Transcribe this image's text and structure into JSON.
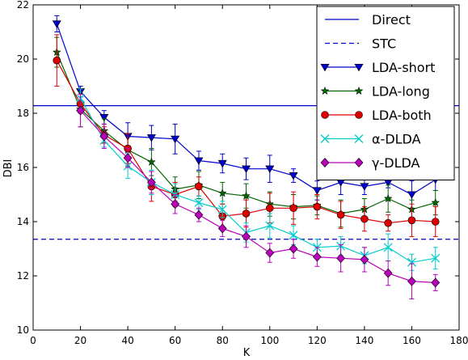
{
  "chart_data": {
    "type": "line",
    "xlabel": "K",
    "ylabel": "DBI",
    "xlim": [
      0,
      180
    ],
    "ylim": [
      10,
      22
    ],
    "xticks": [
      0,
      20,
      40,
      60,
      80,
      100,
      120,
      140,
      160,
      180
    ],
    "yticks": [
      10,
      12,
      14,
      16,
      18,
      20,
      22
    ],
    "grid": false,
    "legend_position": "top-right",
    "reference_lines": [
      {
        "name": "Direct",
        "y": 18.28,
        "style": "solid",
        "color": "#0000cc"
      },
      {
        "name": "STC",
        "y": 13.35,
        "style": "dashed",
        "color": "#0000cc"
      }
    ],
    "x": [
      10,
      20,
      30,
      40,
      50,
      60,
      70,
      80,
      90,
      100,
      110,
      120,
      130,
      140,
      150,
      160,
      170
    ],
    "series": [
      {
        "name": "LDA-short",
        "marker": "triangle-down",
        "color": "#0000cc",
        "values": [
          21.3,
          18.8,
          17.85,
          17.15,
          17.1,
          17.05,
          16.25,
          16.15,
          15.95,
          15.95,
          15.7,
          15.15,
          15.45,
          15.3,
          15.45,
          15.0,
          15.55
        ],
        "errors": [
          0.3,
          0.2,
          0.25,
          0.5,
          0.45,
          0.55,
          0.35,
          0.35,
          0.4,
          0.5,
          0.25,
          0.35,
          0.45,
          0.3,
          0.2,
          0.5,
          0.4
        ]
      },
      {
        "name": "LDA-long",
        "marker": "star",
        "color": "#006600",
        "values": [
          20.25,
          18.15,
          17.35,
          16.65,
          16.2,
          15.2,
          15.35,
          15.05,
          14.95,
          14.65,
          14.55,
          14.6,
          14.3,
          14.45,
          14.85,
          14.45,
          14.7
        ],
        "errors": [
          0.55,
          0.65,
          0.45,
          0.6,
          0.5,
          0.45,
          0.5,
          0.4,
          0.45,
          0.45,
          0.45,
          0.35,
          0.5,
          0.4,
          0.5,
          0.35,
          0.45
        ]
      },
      {
        "name": "LDA-both",
        "marker": "circle",
        "color": "#dd0000",
        "values": [
          19.95,
          18.35,
          17.2,
          16.7,
          15.3,
          15.0,
          15.3,
          14.2,
          14.3,
          14.5,
          14.5,
          14.55,
          14.25,
          14.1,
          13.95,
          14.05,
          14.0
        ],
        "errors": [
          0.95,
          0.35,
          0.3,
          0.55,
          0.55,
          0.45,
          0.35,
          0.45,
          0.5,
          0.55,
          0.6,
          0.45,
          0.5,
          0.45,
          0.3,
          0.6,
          0.55
        ]
      },
      {
        "name": "α-DLDA",
        "marker": "x",
        "color": "#00cccc",
        "values": [
          null,
          18.55,
          17.0,
          16.05,
          15.45,
          15.0,
          14.7,
          14.45,
          13.6,
          13.85,
          13.5,
          13.05,
          13.1,
          12.75,
          13.05,
          12.5,
          12.65
        ],
        "errors": [
          null,
          0.35,
          0.25,
          0.45,
          0.45,
          0.4,
          0.25,
          0.3,
          0.35,
          0.45,
          0.35,
          0.3,
          0.35,
          0.3,
          0.5,
          0.3,
          0.4
        ]
      },
      {
        "name": "γ-DLDA",
        "marker": "diamond",
        "color": "#bb00bb",
        "values": [
          null,
          18.1,
          17.15,
          16.35,
          15.45,
          14.65,
          14.25,
          13.75,
          13.45,
          12.85,
          13.0,
          12.7,
          12.65,
          12.6,
          12.1,
          11.8,
          11.75
        ],
        "errors": [
          null,
          0.6,
          0.45,
          0.35,
          0.4,
          0.35,
          0.25,
          0.3,
          0.4,
          0.35,
          0.35,
          0.35,
          0.5,
          0.45,
          0.45,
          0.65,
          0.3
        ]
      }
    ]
  }
}
